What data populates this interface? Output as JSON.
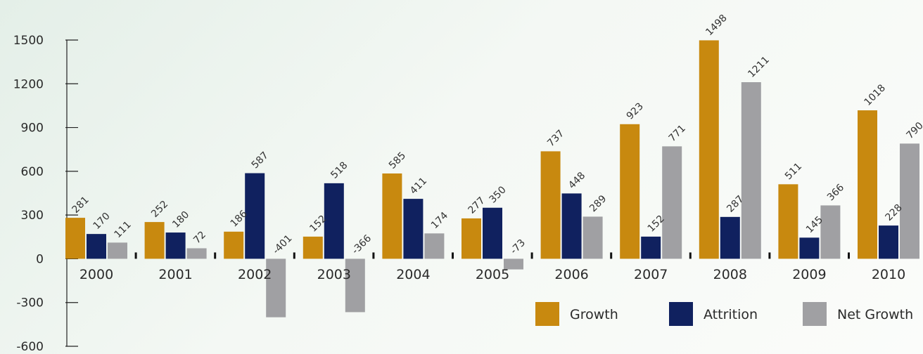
{
  "chart_data": {
    "type": "bar",
    "categories": [
      "2000",
      "2001",
      "2002",
      "2003",
      "2004",
      "2005",
      "2006",
      "2007",
      "2008",
      "2009",
      "2010"
    ],
    "series": [
      {
        "name": "Growth",
        "color": "#c8890f",
        "values": [
          281,
          252,
          186,
          152,
          585,
          277,
          737,
          923,
          1498,
          511,
          1018
        ]
      },
      {
        "name": "Attrition",
        "color": "#10215f",
        "values": [
          170,
          180,
          587,
          518,
          411,
          350,
          448,
          152,
          287,
          145,
          228
        ]
      },
      {
        "name": "Net Growth",
        "color": "#a0a0a3",
        "values": [
          111,
          72,
          -401,
          -366,
          174,
          -73,
          289,
          771,
          1211,
          366,
          790
        ]
      }
    ],
    "ylim": [
      -600,
      1500
    ],
    "yticks": [
      1500,
      1200,
      900,
      600,
      300,
      0,
      -300,
      -600
    ],
    "legend_position": "bottom-right"
  }
}
